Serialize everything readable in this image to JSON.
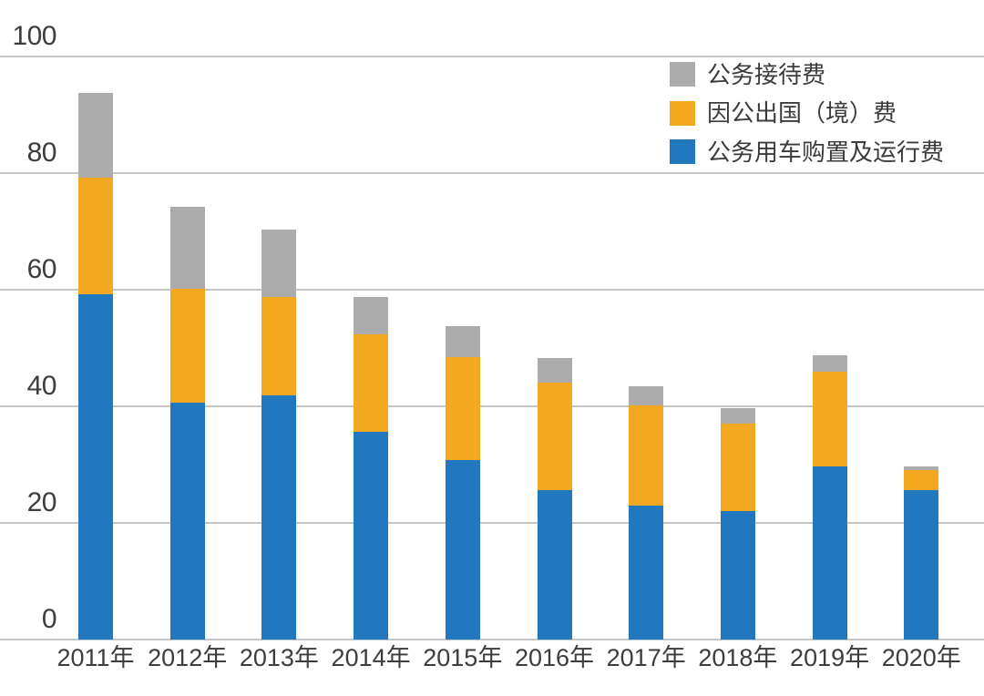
{
  "chart_data": {
    "type": "bar",
    "stacked": true,
    "title": "",
    "xlabel": "",
    "ylabel": "",
    "categories": [
      "2011年",
      "2012年",
      "2013年",
      "2014年",
      "2015年",
      "2016年",
      "2017年",
      "2018年",
      "2019年",
      "2020年"
    ],
    "series": [
      {
        "name": "公务用车购置及运行费",
        "color": "#2278BE",
        "values": [
          59.2,
          40.7,
          41.9,
          35.7,
          30.8,
          25.7,
          23.0,
          22.0,
          29.7,
          25.7
        ]
      },
      {
        "name": "因公出国（境）费",
        "color": "#F2A921",
        "values": [
          20.0,
          19.4,
          16.8,
          16.6,
          17.7,
          18.3,
          17.1,
          15.0,
          16.2,
          3.4
        ]
      },
      {
        "name": "公务接待费",
        "color": "#ABABAB",
        "values": [
          14.5,
          14.2,
          11.6,
          6.4,
          5.2,
          4.3,
          3.4,
          2.7,
          2.8,
          0.6
        ]
      }
    ],
    "totals": [
      93.7,
      74.3,
      70.3,
      58.7,
      53.7,
      48.3,
      43.5,
      39.7,
      48.7,
      29.7
    ],
    "yticks": [
      0,
      20,
      40,
      60,
      80,
      100
    ],
    "ylim": [
      0,
      100
    ],
    "grid": true,
    "legend": {
      "position": "top-right",
      "items_top_to_bottom": [
        "公务接待费",
        "因公出国（境）费",
        "公务用车购置及运行费"
      ]
    }
  },
  "colors": {
    "background": "#FFFFFF",
    "gridline": "#C6C6C6",
    "axis_text": "#3D3D3D",
    "legend_text": "#3B3B3B",
    "series_blue": "#2278BE",
    "series_orange": "#F2A921",
    "series_gray": "#ABABAB"
  }
}
